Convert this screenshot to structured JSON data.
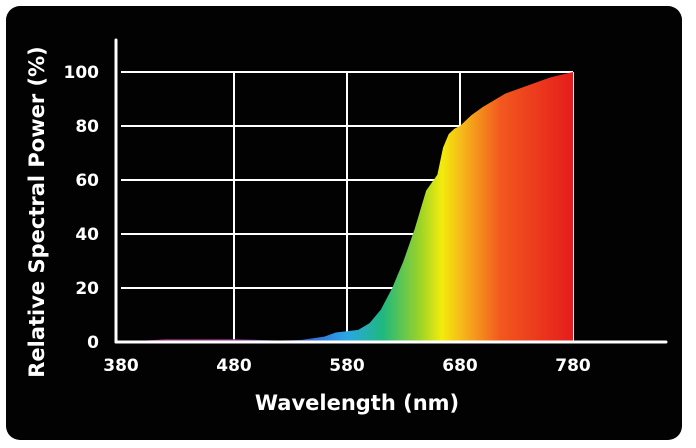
{
  "chart_data": {
    "type": "area",
    "title": "",
    "xlabel": "Wavelength (nm)",
    "ylabel": "Relative Spectral Power (%)",
    "xlim": [
      380,
      780
    ],
    "ylim": [
      0,
      100
    ],
    "x_ticks": [
      380,
      480,
      580,
      680,
      780
    ],
    "y_ticks": [
      0,
      20,
      40,
      60,
      80,
      100
    ],
    "grid": true,
    "legend": "none",
    "colors": {
      "background": "#020202",
      "axis": "#ffffff",
      "grid": "#ffffff",
      "text": "#ffffff"
    },
    "series": [
      {
        "fill": "spectral-gradient",
        "x": [
          380,
          400,
          420,
          440,
          460,
          480,
          500,
          520,
          540,
          560,
          570,
          580,
          590,
          600,
          610,
          620,
          630,
          640,
          650,
          660,
          665,
          670,
          675,
          680,
          690,
          700,
          720,
          740,
          760,
          780
        ],
        "y": [
          0,
          0.5,
          1,
          1,
          1,
          1,
          0.8,
          0.5,
          0.8,
          2,
          3.5,
          4,
          4.5,
          7,
          12,
          20,
          30,
          42,
          56,
          62,
          72,
          77,
          79,
          80,
          84,
          87,
          92,
          95,
          98,
          100
        ]
      }
    ]
  }
}
